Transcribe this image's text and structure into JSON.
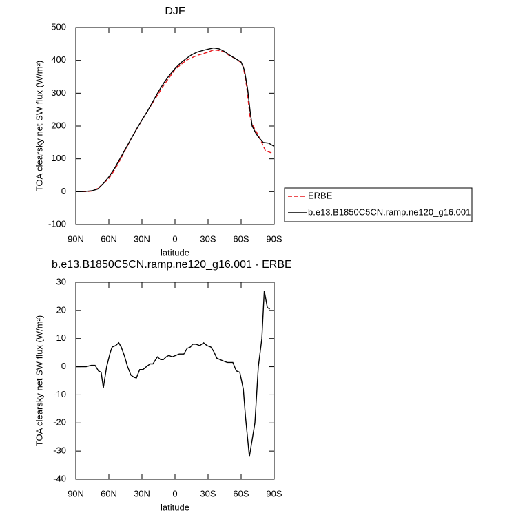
{
  "chart_data": [
    {
      "type": "line",
      "title": "DJF",
      "xlabel": "latitude",
      "ylabel": "TOA clearsky net SW flux (W/m²)",
      "xlim": [
        90,
        -90
      ],
      "xticks": [
        {
          "value": 90,
          "label": "90N"
        },
        {
          "value": 60,
          "label": "60N"
        },
        {
          "value": 30,
          "label": "30N"
        },
        0,
        {
          "value": -30,
          "label": "30S"
        },
        {
          "value": -60,
          "label": "60S"
        },
        {
          "value": -90,
          "label": "90S"
        }
      ],
      "ylim": [
        -100,
        500
      ],
      "yticks": [
        -100,
        0,
        100,
        200,
        300,
        400,
        500
      ],
      "legend": "right",
      "series": [
        {
          "name": "ERBE",
          "color": "#e8161b",
          "line_style": "dashed",
          "x": [
            90,
            80,
            75,
            70,
            65,
            60,
            55,
            50,
            40,
            30,
            20,
            10,
            0,
            -10,
            -20,
            -30,
            -35,
            -40,
            -45,
            -50,
            -55,
            -60,
            -62,
            -65,
            -68,
            -70,
            -75,
            -78,
            -82,
            -86,
            -90
          ],
          "values": [
            0,
            0,
            2,
            10,
            25,
            40,
            65,
            95,
            160,
            218,
            272,
            325,
            372,
            400,
            415,
            425,
            432,
            430,
            425,
            413,
            405,
            393,
            380,
            320,
            230,
            205,
            175,
            155,
            125,
            120,
            115
          ]
        },
        {
          "name": "b.e13.B1850C5CN.ramp.ne120_g16.001",
          "color": "#000000",
          "line_style": "solid",
          "x": [
            90,
            85,
            80,
            75,
            70,
            65,
            60,
            55,
            50,
            45,
            40,
            35,
            30,
            25,
            20,
            15,
            10,
            5,
            0,
            -5,
            -10,
            -15,
            -20,
            -25,
            -30,
            -35,
            -40,
            -45,
            -50,
            -55,
            -60,
            -63,
            -66,
            -68,
            -70,
            -73,
            -76,
            -80,
            -85,
            -90
          ],
          "values": [
            0,
            0,
            1,
            3,
            8,
            25,
            45,
            70,
            100,
            130,
            160,
            190,
            218,
            245,
            275,
            305,
            332,
            355,
            375,
            392,
            405,
            417,
            425,
            430,
            434,
            438,
            435,
            427,
            415,
            405,
            395,
            370,
            310,
            250,
            200,
            180,
            165,
            150,
            148,
            138
          ]
        }
      ]
    },
    {
      "type": "line",
      "title": "b.e13.B1850C5CN.ramp.ne120_g16.001 - ERBE",
      "xlabel": "latitude",
      "ylabel": "TOA clearsky net SW flux (W/m²)",
      "xlim": [
        90,
        -90
      ],
      "xticks": [
        {
          "value": 90,
          "label": "90N"
        },
        {
          "value": 60,
          "label": "60N"
        },
        {
          "value": 30,
          "label": "30N"
        },
        0,
        {
          "value": -30,
          "label": "30S"
        },
        {
          "value": -60,
          "label": "60S"
        },
        {
          "value": -90,
          "label": "90S"
        }
      ],
      "ylim": [
        -40,
        30
      ],
      "yticks": [
        -40,
        -30,
        -20,
        -10,
        0,
        10,
        20,
        30
      ],
      "series": [
        {
          "color": "#000000",
          "line_style": "solid",
          "x": [
            90,
            80.6,
            76,
            72.5,
            69.4,
            67,
            65,
            62,
            58.8,
            57,
            53.8,
            51,
            48.8,
            46,
            43,
            40,
            37,
            35,
            32,
            29,
            26,
            22.5,
            20,
            16,
            13,
            10.6,
            8,
            5.6,
            2.5,
            -0.6,
            -3.8,
            -8,
            -11,
            -14,
            -16,
            -19,
            -22.5,
            -26,
            -29,
            -32.5,
            -35,
            -38,
            -41,
            -44,
            -47.5,
            -52.5,
            -55.6,
            -58.8,
            -62,
            -64,
            -67.5,
            -72.5,
            -75.6,
            -78.8,
            -81,
            -83.8,
            -86
          ],
          "values": [
            0,
            0,
            0.5,
            0.5,
            -1.5,
            -2,
            -7.5,
            0,
            5,
            7,
            7.5,
            8.5,
            7,
            4,
            0,
            -3,
            -3.8,
            -4,
            -1,
            -1,
            0,
            1,
            1,
            3.5,
            2.5,
            2.5,
            3.5,
            4,
            3.5,
            4,
            4.5,
            4.5,
            6.5,
            7,
            8,
            8,
            7.5,
            8.5,
            7.5,
            7,
            5.5,
            3,
            2.5,
            2,
            1.5,
            1.5,
            -1.5,
            -2,
            -8,
            -18,
            -32,
            -20,
            0,
            10,
            27,
            21,
            20.5
          ]
        }
      ]
    }
  ]
}
